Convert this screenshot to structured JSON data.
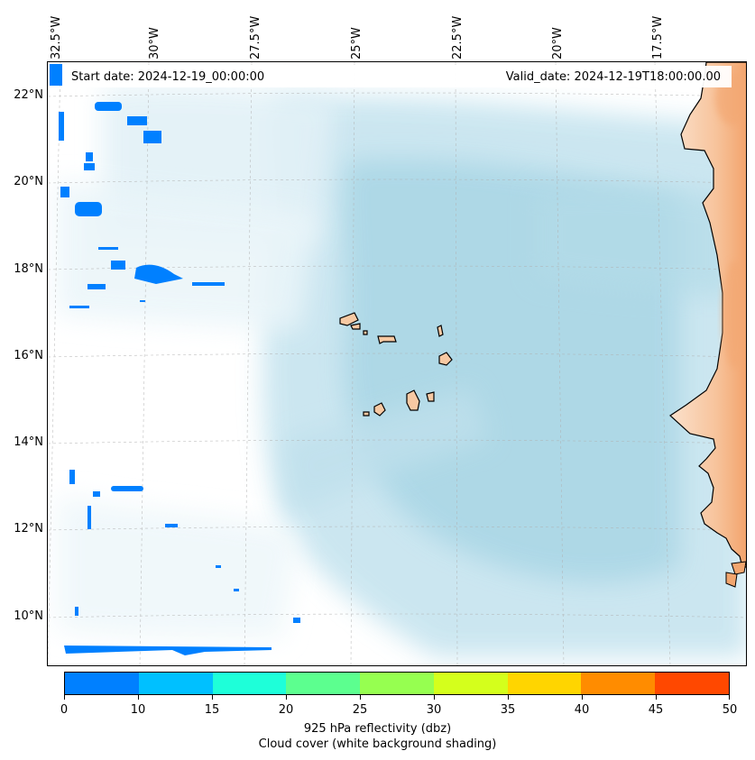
{
  "map": {
    "start_date": "Start date: 2024-12-19_00:00:00",
    "valid_date": "Valid_date: 2024-12-19T18:00:00.00",
    "lon_labels": [
      "32.5°W",
      "30°W",
      "27.5°W",
      "25°W",
      "22.5°W",
      "20°W",
      "17.5°W"
    ],
    "lat_labels": [
      "22°N",
      "20°N",
      "18°N",
      "16°N",
      "14°N",
      "12°N",
      "10°N"
    ],
    "islands": "Cape Verde islands",
    "colors": {
      "land": "#f7c9a3",
      "land_hot": "#f3a873",
      "cloud": "#add8e6",
      "reflectivity_low": "#0080ff"
    }
  },
  "colorbar": {
    "ticks": [
      "0",
      "10",
      "15",
      "20",
      "25",
      "30",
      "35",
      "40",
      "45",
      "50"
    ],
    "colors": [
      "#0080ff",
      "#00c0ff",
      "#1effd9",
      "#5cff8f",
      "#96ff50",
      "#d4ff1c",
      "#ffd500",
      "#ff8c00",
      "#ff4800"
    ],
    "label_line1": "925 hPa reflectivity (dbz)",
    "label_line2": "Cloud cover (white background shading)"
  }
}
